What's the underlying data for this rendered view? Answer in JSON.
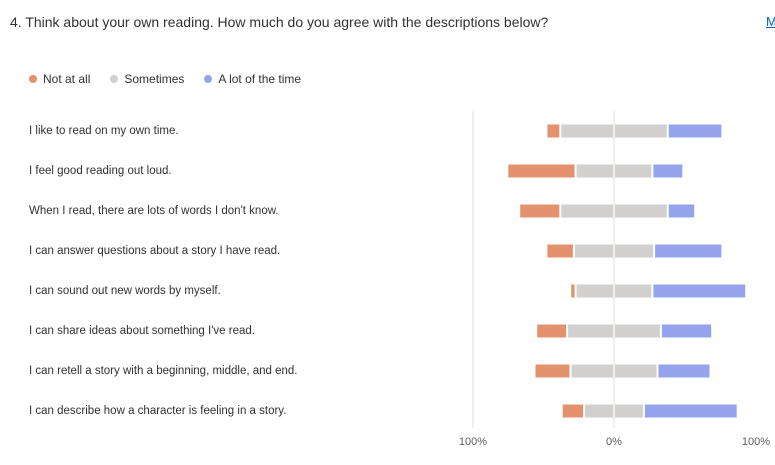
{
  "question": {
    "title": "4. Think about your own reading. How much do you agree with the descriptions below?",
    "more_link": "M"
  },
  "colors": {
    "not_at_all": "#E3926D",
    "sometimes": "#D2D0CE",
    "a_lot": "#93A4EC",
    "axis": "#E1DFDD"
  },
  "chart_data": {
    "type": "bar",
    "layout": "diverging-stacked-horizontal",
    "legend": [
      "Not at all",
      "Sometimes",
      "A lot of the time"
    ],
    "legend_position": "top-left",
    "categories": [
      "I like to read on my own time.",
      "I feel good reading out loud.",
      "When I read, there are lots of words I don't know.",
      "I can answer questions about a story I have read.",
      "I can sound out new words by myself.",
      "I can share ideas about something I've read.",
      "I can retell a story with a beginning, middle, and end.",
      "I can describe how a character is feeling in a story."
    ],
    "series": [
      {
        "name": "Not at all",
        "values": [
          7,
          39,
          23,
          15,
          2,
          17,
          20,
          12
        ]
      },
      {
        "name": "Sometimes",
        "values": [
          62,
          44,
          62,
          46,
          44,
          54,
          50,
          34
        ]
      },
      {
        "name": "A lot of the time",
        "values": [
          31,
          17,
          15,
          39,
          54,
          29,
          30,
          54
        ]
      }
    ],
    "xlim": [
      -100,
      100
    ],
    "xticks": [
      "100%",
      "0%",
      "100%"
    ],
    "unit": "%"
  }
}
